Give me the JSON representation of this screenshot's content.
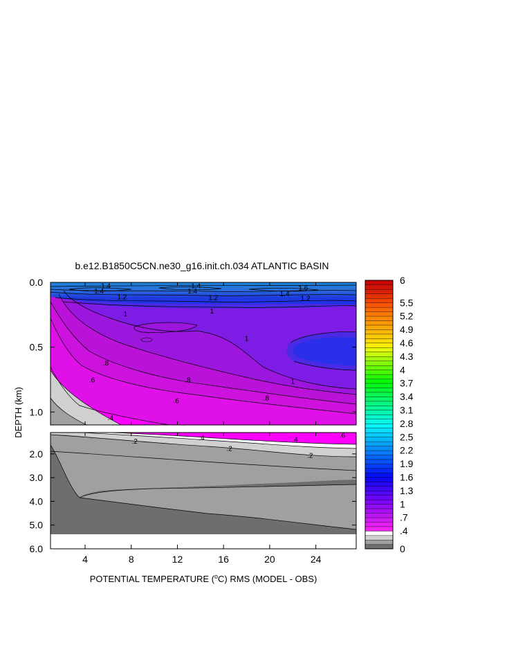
{
  "chart_data": {
    "type": "heatmap",
    "title": "b.e12.B1850C5CN.ne30_g16.init.ch.034 ATLANTIC BASIN",
    "xlabel_main": "POTENTIAL TEMPERATURE (",
    "xlabel_deg": "o",
    "xlabel_rest": "C) RMS (MODEL - OBS)",
    "ylabel": "DEPTH (km)",
    "x_ticks": [
      "4",
      "8",
      "12",
      "16",
      "20",
      "24"
    ],
    "x_tick_values": [
      4,
      8,
      12,
      16,
      20,
      24
    ],
    "xlim": [
      1,
      27.5
    ],
    "upper_y_ticks": [
      "0.0",
      "0.5",
      "1.0"
    ],
    "upper_y_values": [
      0,
      0.5,
      1.0
    ],
    "upper_ylim": [
      0,
      1.1
    ],
    "lower_y_ticks": [
      "2.0",
      "3.0",
      "4.0",
      "5.0",
      "6.0"
    ],
    "lower_y_values": [
      2,
      3,
      4,
      5,
      6
    ],
    "lower_ylim": [
      1.1,
      6.0
    ],
    "colorbar_labels": [
      "6",
      "5.5",
      "5.2",
      "4.9",
      "4.6",
      "4.3",
      "4",
      "3.7",
      "3.4",
      "3.1",
      "2.8",
      "2.5",
      "2.2",
      "1.9",
      "1.6",
      "1.3",
      "1",
      ".7",
      ".4",
      "0"
    ],
    "colorbar_range": [
      0,
      6
    ],
    "contour_labels": [
      {
        "text": "1.4",
        "x": 5.8,
        "y": 0.025,
        "panel": "upper"
      },
      {
        "text": "1.4",
        "x": 5.2,
        "y": 0.065,
        "panel": "upper"
      },
      {
        "text": "1.4",
        "x": 13.6,
        "y": 0.025,
        "panel": "upper"
      },
      {
        "text": "1.4",
        "x": 13.3,
        "y": 0.065,
        "panel": "upper"
      },
      {
        "text": "1.6",
        "x": 22.9,
        "y": 0.04,
        "panel": "upper"
      },
      {
        "text": "1.4",
        "x": 21.3,
        "y": 0.085,
        "panel": "upper"
      },
      {
        "text": "1.2",
        "x": 7.2,
        "y": 0.11,
        "panel": "upper"
      },
      {
        "text": "1.2",
        "x": 15.1,
        "y": 0.115,
        "panel": "upper"
      },
      {
        "text": "1.2",
        "x": 23.1,
        "y": 0.12,
        "panel": "upper"
      },
      {
        "text": "1",
        "x": 7.5,
        "y": 0.24,
        "panel": "upper"
      },
      {
        "text": "1",
        "x": 15.0,
        "y": 0.22,
        "panel": "upper"
      },
      {
        "text": "1",
        "x": 18.0,
        "y": 0.43,
        "panel": "upper"
      },
      {
        "text": "1",
        "x": 22.0,
        "y": 0.76,
        "panel": "upper"
      },
      {
        "text": ".8",
        "x": 5.8,
        "y": 0.62,
        "panel": "upper"
      },
      {
        "text": ".8",
        "x": 12.9,
        "y": 0.75,
        "panel": "upper"
      },
      {
        "text": ".8",
        "x": 19.7,
        "y": 0.89,
        "panel": "upper"
      },
      {
        "text": ".6",
        "x": 4.6,
        "y": 0.75,
        "panel": "upper"
      },
      {
        "text": ".6",
        "x": 11.9,
        "y": 0.91,
        "panel": "upper"
      },
      {
        "text": ".4",
        "x": 6.2,
        "y": 1.04,
        "panel": "upper"
      },
      {
        "text": ".6",
        "x": 26.3,
        "y": 1.2,
        "panel": "lower"
      },
      {
        "text": ".4",
        "x": 14.1,
        "y": 1.3,
        "panel": "lower"
      },
      {
        "text": ".4",
        "x": 22.2,
        "y": 1.37,
        "panel": "lower"
      },
      {
        "text": ".2",
        "x": 8.3,
        "y": 1.45,
        "panel": "lower"
      },
      {
        "text": ".2",
        "x": 16.5,
        "y": 1.75,
        "panel": "lower"
      },
      {
        "text": ".2",
        "x": 23.5,
        "y": 2.05,
        "panel": "lower"
      }
    ]
  }
}
